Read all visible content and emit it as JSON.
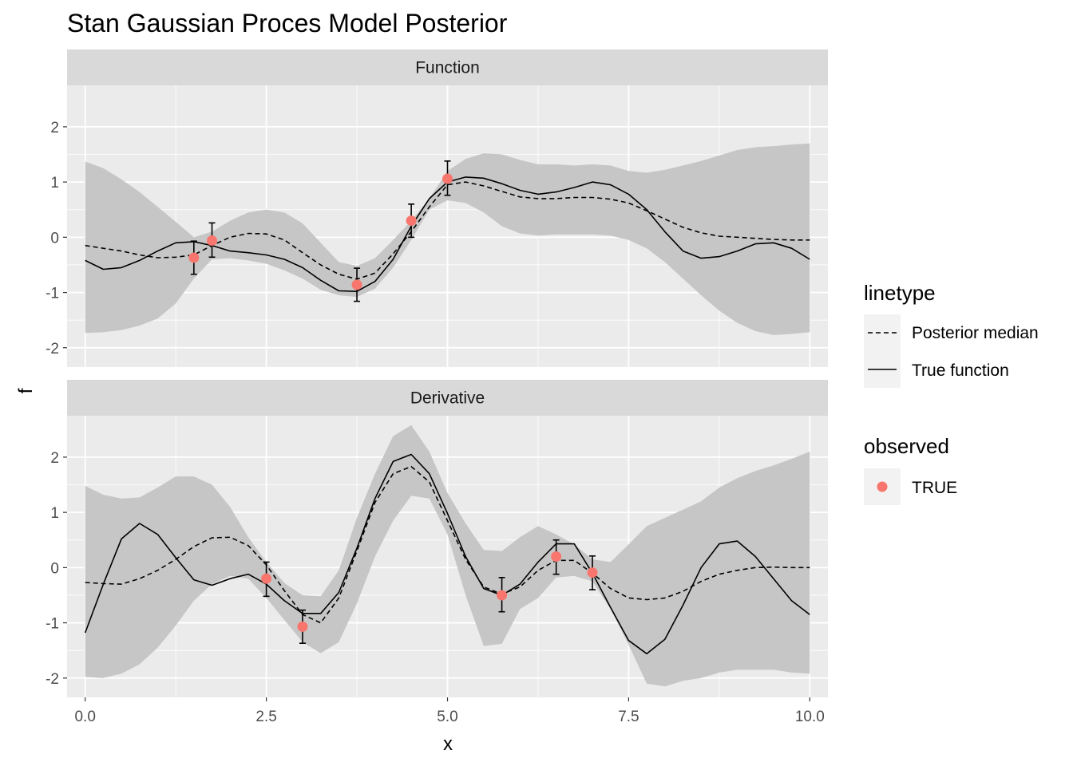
{
  "chart_data": {
    "type": "line",
    "title": "Stan Gaussian Proces Model Posterior",
    "xlabel": "x",
    "ylabel": "f",
    "xlim": [
      -0.25,
      10.25
    ],
    "ylim": [
      -2.35,
      2.75
    ],
    "x_ticks": [
      "0.0",
      "2.5",
      "5.0",
      "7.5",
      "10.0"
    ],
    "x_tick_values": [
      0,
      2.5,
      5,
      7.5,
      10
    ],
    "y_ticks": [
      "-2",
      "-1",
      "0",
      "1",
      "2"
    ],
    "y_tick_values": [
      -2,
      -1,
      0,
      1,
      2
    ],
    "grid": true,
    "legend_position": "right",
    "colors": {
      "ribbon": "#c6c6c6",
      "panel_bg": "#ebebeb",
      "strip_bg": "#d9d9d9",
      "point": "#f8766d",
      "line": "#000000"
    },
    "legend": {
      "linetype_title": "linetype",
      "linetype_items": [
        "Posterior median",
        "True function"
      ],
      "observed_title": "observed",
      "observed_items": [
        "TRUE"
      ]
    },
    "panels": [
      {
        "label": "Function",
        "x": [
          0,
          0.25,
          0.5,
          0.75,
          1,
          1.25,
          1.5,
          1.75,
          2,
          2.25,
          2.5,
          2.75,
          3,
          3.25,
          3.5,
          3.75,
          4,
          4.25,
          4.5,
          4.75,
          5,
          5.25,
          5.5,
          5.75,
          6,
          6.25,
          6.5,
          6.75,
          7,
          7.25,
          7.5,
          7.75,
          8,
          8.25,
          8.5,
          8.75,
          9,
          9.25,
          9.5,
          9.75,
          10
        ],
        "series": [
          {
            "name": "Posterior median",
            "linetype": "dashed",
            "values": [
              -0.15,
              -0.2,
              -0.25,
              -0.32,
              -0.37,
              -0.36,
              -0.32,
              -0.15,
              0.0,
              0.07,
              0.06,
              -0.05,
              -0.28,
              -0.5,
              -0.67,
              -0.76,
              -0.65,
              -0.3,
              0.1,
              0.55,
              0.95,
              1.0,
              0.93,
              0.83,
              0.73,
              0.7,
              0.7,
              0.72,
              0.72,
              0.69,
              0.62,
              0.48,
              0.33,
              0.18,
              0.08,
              0.02,
              0.0,
              -0.02,
              -0.04,
              -0.05,
              -0.05
            ]
          },
          {
            "name": "True function",
            "linetype": "solid",
            "values": [
              -0.42,
              -0.58,
              -0.55,
              -0.42,
              -0.25,
              -0.1,
              -0.08,
              -0.15,
              -0.25,
              -0.28,
              -0.32,
              -0.4,
              -0.55,
              -0.78,
              -0.97,
              -0.98,
              -0.8,
              -0.4,
              0.2,
              0.7,
              1.0,
              1.09,
              1.07,
              0.97,
              0.85,
              0.78,
              0.82,
              0.9,
              1.0,
              0.95,
              0.78,
              0.5,
              0.1,
              -0.25,
              -0.38,
              -0.35,
              -0.25,
              -0.12,
              -0.1,
              -0.2,
              -0.4
            ]
          }
        ],
        "ribbon": {
          "lower": [
            -1.73,
            -1.72,
            -1.68,
            -1.6,
            -1.47,
            -1.2,
            -0.75,
            -0.4,
            -0.38,
            -0.42,
            -0.48,
            -0.6,
            -0.75,
            -0.95,
            -1.05,
            -1.08,
            -0.93,
            -0.55,
            -0.05,
            0.5,
            0.67,
            0.62,
            0.45,
            0.2,
            0.07,
            0.03,
            0.05,
            0.05,
            0.05,
            0.03,
            -0.05,
            -0.2,
            -0.45,
            -0.75,
            -1.05,
            -1.33,
            -1.55,
            -1.7,
            -1.77,
            -1.75,
            -1.72
          ],
          "upper": [
            1.37,
            1.25,
            1.05,
            0.82,
            0.55,
            0.28,
            0.0,
            0.1,
            0.3,
            0.45,
            0.5,
            0.45,
            0.25,
            -0.1,
            -0.45,
            -0.52,
            -0.38,
            -0.05,
            0.3,
            0.7,
            1.2,
            1.42,
            1.52,
            1.5,
            1.4,
            1.32,
            1.32,
            1.3,
            1.32,
            1.3,
            1.2,
            1.17,
            1.22,
            1.3,
            1.38,
            1.48,
            1.58,
            1.63,
            1.65,
            1.68,
            1.7
          ]
        },
        "observed": [
          {
            "x": 1.5,
            "y": -0.37,
            "lower": -0.67,
            "upper": -0.07
          },
          {
            "x": 1.75,
            "y": -0.06,
            "lower": -0.36,
            "upper": 0.26
          },
          {
            "x": 3.75,
            "y": -0.86,
            "lower": -1.16,
            "upper": -0.56
          },
          {
            "x": 4.5,
            "y": 0.3,
            "lower": 0.0,
            "upper": 0.6
          },
          {
            "x": 5.0,
            "y": 1.06,
            "lower": 0.76,
            "upper": 1.38
          }
        ]
      },
      {
        "label": "Derivative",
        "x": [
          0,
          0.25,
          0.5,
          0.75,
          1,
          1.25,
          1.5,
          1.75,
          2,
          2.25,
          2.5,
          2.75,
          3,
          3.25,
          3.5,
          3.75,
          4,
          4.25,
          4.5,
          4.75,
          5,
          5.25,
          5.5,
          5.75,
          6,
          6.25,
          6.5,
          6.75,
          7,
          7.25,
          7.5,
          7.75,
          8,
          8.25,
          8.5,
          8.75,
          9,
          9.25,
          9.5,
          9.75,
          10
        ],
        "series": [
          {
            "name": "Posterior median",
            "linetype": "dashed",
            "values": [
              -0.27,
              -0.29,
              -0.3,
              -0.2,
              -0.05,
              0.15,
              0.38,
              0.54,
              0.55,
              0.4,
              0.05,
              -0.42,
              -0.85,
              -1.0,
              -0.55,
              0.3,
              1.18,
              1.7,
              1.83,
              1.55,
              0.85,
              0.15,
              -0.35,
              -0.48,
              -0.35,
              -0.05,
              0.13,
              0.13,
              -0.1,
              -0.38,
              -0.55,
              -0.58,
              -0.55,
              -0.43,
              -0.25,
              -0.12,
              -0.05,
              0.0,
              0.01,
              0.0,
              0.0
            ]
          },
          {
            "name": "True function",
            "linetype": "solid",
            "values": [
              -1.18,
              -0.3,
              0.52,
              0.8,
              0.6,
              0.18,
              -0.22,
              -0.32,
              -0.2,
              -0.12,
              -0.3,
              -0.6,
              -0.83,
              -0.83,
              -0.45,
              0.35,
              1.25,
              1.92,
              2.05,
              1.7,
              0.98,
              0.2,
              -0.38,
              -0.5,
              -0.3,
              0.1,
              0.43,
              0.43,
              -0.1,
              -0.72,
              -1.32,
              -1.56,
              -1.3,
              -0.68,
              0.0,
              0.43,
              0.48,
              0.2,
              -0.2,
              -0.6,
              -0.85
            ]
          }
        ],
        "ribbon": {
          "lower": [
            -1.98,
            -2.0,
            -1.92,
            -1.75,
            -1.45,
            -1.05,
            -0.6,
            -0.3,
            -0.15,
            -0.2,
            -0.55,
            -0.95,
            -1.35,
            -1.55,
            -1.35,
            -0.65,
            0.2,
            0.85,
            1.3,
            1.25,
            0.6,
            -0.5,
            -1.42,
            -1.38,
            -0.75,
            -0.55,
            -0.18,
            -0.15,
            -0.25,
            -0.75,
            -1.4,
            -2.1,
            -2.15,
            -2.05,
            -2.0,
            -1.9,
            -1.85,
            -1.85,
            -1.85,
            -1.9,
            -1.92
          ],
          "upper": [
            1.48,
            1.32,
            1.25,
            1.27,
            1.45,
            1.65,
            1.65,
            1.5,
            1.1,
            0.55,
            0.1,
            -0.28,
            -0.5,
            -0.52,
            -0.05,
            0.9,
            1.7,
            2.38,
            2.58,
            2.1,
            1.35,
            0.8,
            0.32,
            0.3,
            0.55,
            0.75,
            0.6,
            0.42,
            0.15,
            0.1,
            0.42,
            0.75,
            0.9,
            1.05,
            1.2,
            1.45,
            1.62,
            1.75,
            1.85,
            1.97,
            2.1
          ]
        },
        "observed": [
          {
            "x": 2.5,
            "y": -0.2,
            "lower": -0.52,
            "upper": 0.1
          },
          {
            "x": 3.0,
            "y": -1.07,
            "lower": -1.37,
            "upper": -0.77
          },
          {
            "x": 5.75,
            "y": -0.5,
            "lower": -0.8,
            "upper": -0.18
          },
          {
            "x": 6.5,
            "y": 0.2,
            "lower": -0.12,
            "upper": 0.5
          },
          {
            "x": 7.0,
            "y": -0.09,
            "lower": -0.4,
            "upper": 0.21
          }
        ]
      }
    ]
  }
}
